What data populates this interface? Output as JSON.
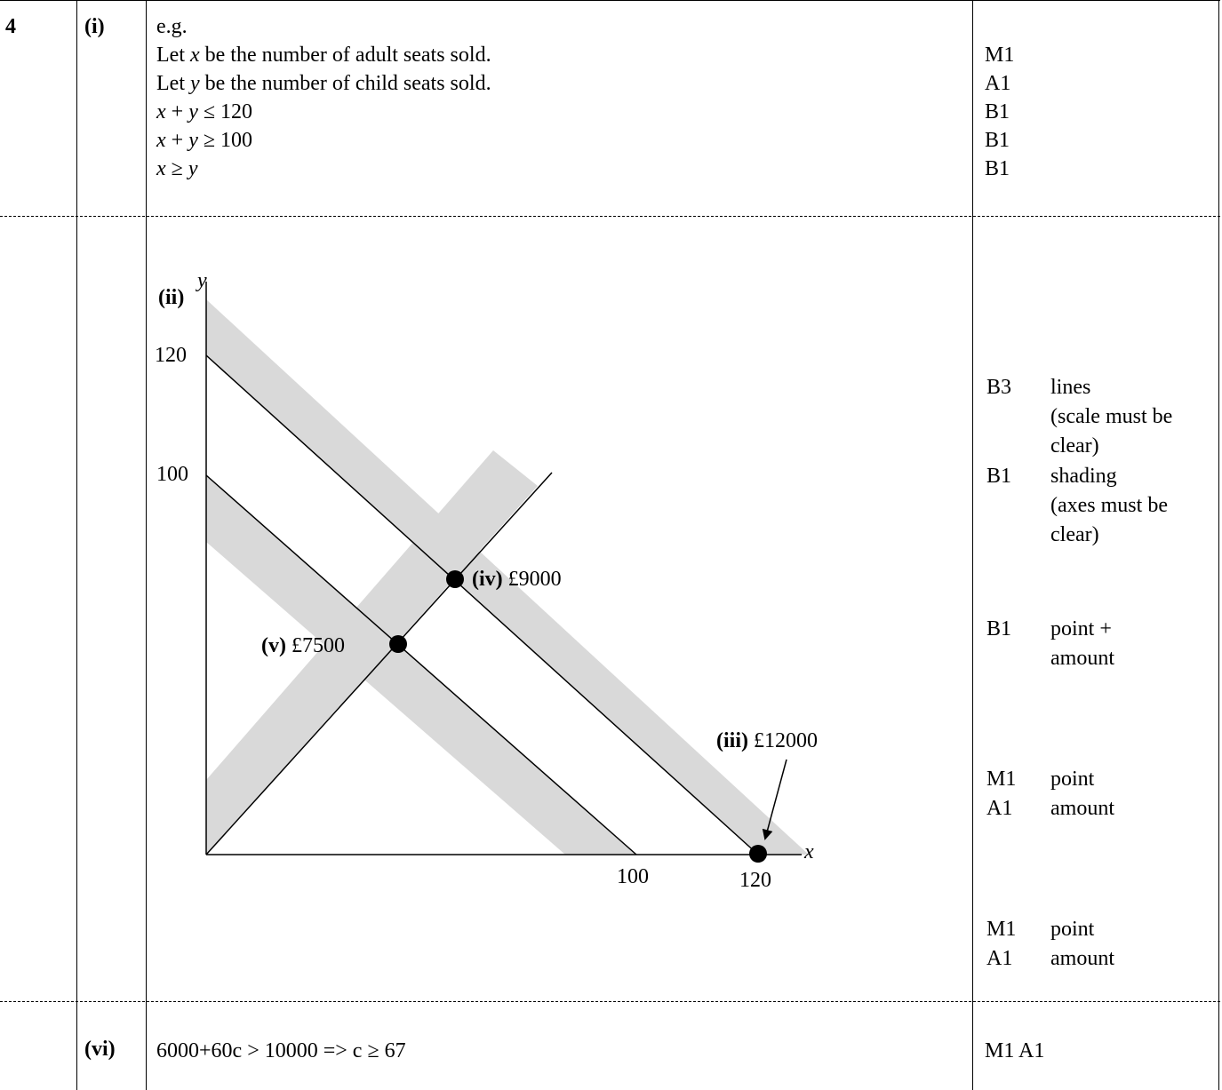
{
  "question": {
    "number": "4",
    "part_i": {
      "label": "(i)",
      "lines": [
        "e.g.",
        "Let x be the number of adult seats sold.",
        "Let y be the number of child seats sold.",
        "x + y ≤ 120",
        "x + y ≥ 100",
        "x ≥ y"
      ],
      "marks": [
        "M1",
        "A1",
        "B1",
        "B1",
        "B1"
      ]
    },
    "graph": {
      "part_label": "(ii)",
      "y_axis": "y",
      "x_axis": "x",
      "y_ticks": [
        "120",
        "100"
      ],
      "x_ticks": [
        "100",
        "120"
      ],
      "point_iii": {
        "label": "(iii)",
        "value": "£12000"
      },
      "point_iv": {
        "label": "(iv)",
        "value": "£9000"
      },
      "point_v": {
        "label": "(v)",
        "value": "£7500"
      }
    },
    "marks_graph": [
      {
        "code": "B3",
        "note": [
          "lines",
          "(scale must be",
          "clear)"
        ]
      },
      {
        "code": "B1",
        "note": [
          "shading",
          "(axes must be",
          "clear)"
        ]
      },
      {
        "code": "B1",
        "note": [
          "point +",
          "amount"
        ]
      },
      {
        "code": "M1",
        "note": [
          "point"
        ]
      },
      {
        "code": "A1",
        "note": [
          "amount"
        ]
      },
      {
        "code": "M1",
        "note": [
          "point"
        ]
      },
      {
        "code": "A1",
        "note": [
          "amount"
        ]
      }
    ],
    "part_vi": {
      "label": "(vi)",
      "text": "6000+60c > 10000 => c ≥ 67",
      "marks": "M1 A1"
    }
  }
}
